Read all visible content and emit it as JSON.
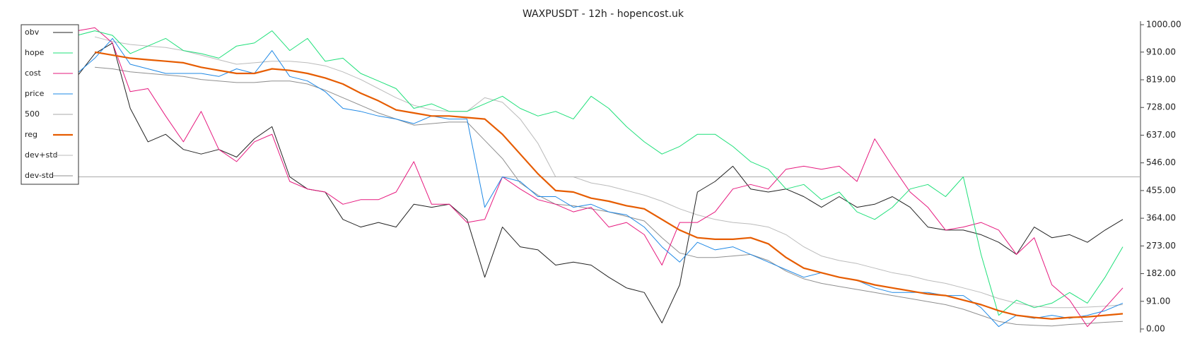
{
  "chart_data": {
    "type": "line",
    "title": "WAXPUSDT - 12h - hopencost.uk",
    "ylim": [
      0,
      1000
    ],
    "yticks": [
      {
        "value": 0,
        "label": "0.00"
      },
      {
        "value": 91,
        "label": "91.00"
      },
      {
        "value": 182,
        "label": "182.00"
      },
      {
        "value": 273,
        "label": "273.00"
      },
      {
        "value": 364,
        "label": "364.00"
      },
      {
        "value": 455,
        "label": "455.00"
      },
      {
        "value": 546,
        "label": "546.00"
      },
      {
        "value": 637,
        "label": "637.00"
      },
      {
        "value": 728,
        "label": "728.00"
      },
      {
        "value": 819,
        "label": "819.00"
      },
      {
        "value": 910,
        "label": "910.00"
      },
      {
        "value": 1000,
        "label": "1000.00"
      }
    ],
    "legend": "upper left",
    "series": [
      {
        "name": "obv",
        "color": "#222222",
        "width": 1,
        "values": [
          830,
          905,
          940,
          725,
          615,
          640,
          590,
          575,
          590,
          565,
          625,
          665,
          500,
          460,
          450,
          360,
          335,
          350,
          335,
          410,
          400,
          410,
          360,
          170,
          335,
          270,
          260,
          210,
          220,
          210,
          170,
          135,
          120,
          20,
          145,
          450,
          485,
          535,
          460,
          450,
          460,
          435,
          400,
          435,
          400,
          410,
          435,
          400,
          335,
          325,
          325,
          310,
          285,
          245,
          335,
          300,
          310,
          285,
          325,
          360
        ]
      },
      {
        "name": "hope",
        "color": "#1fe07a",
        "width": 1,
        "values": [
          965,
          980,
          965,
          905,
          930,
          955,
          915,
          905,
          890,
          930,
          940,
          980,
          915,
          955,
          880,
          890,
          840,
          815,
          790,
          725,
          740,
          715,
          715,
          740,
          765,
          725,
          700,
          715,
          690,
          765,
          725,
          665,
          615,
          575,
          600,
          640,
          640,
          600,
          550,
          525,
          460,
          475,
          425,
          450,
          385,
          360,
          400,
          460,
          475,
          435,
          500,
          245,
          45,
          95,
          70,
          85,
          120,
          85,
          170,
          270
        ]
      },
      {
        "name": "cost",
        "color": "#e6197e",
        "width": 1,
        "values": [
          980,
          990,
          940,
          780,
          790,
          700,
          615,
          715,
          590,
          550,
          615,
          640,
          485,
          460,
          450,
          410,
          425,
          425,
          450,
          550,
          410,
          410,
          350,
          360,
          500,
          460,
          425,
          410,
          385,
          400,
          335,
          350,
          310,
          210,
          350,
          350,
          385,
          460,
          475,
          460,
          525,
          535,
          525,
          535,
          485,
          625,
          535,
          450,
          400,
          325,
          335,
          350,
          325,
          245,
          300,
          145,
          95,
          8,
          70,
          135
        ]
      },
      {
        "name": "price",
        "color": "#1e88e5",
        "width": 1,
        "values": [
          840,
          890,
          955,
          870,
          855,
          840,
          840,
          840,
          830,
          855,
          840,
          915,
          830,
          815,
          780,
          725,
          715,
          700,
          690,
          675,
          700,
          690,
          690,
          400,
          500,
          485,
          435,
          435,
          400,
          410,
          385,
          375,
          335,
          270,
          220,
          285,
          260,
          270,
          245,
          220,
          195,
          170,
          185,
          170,
          160,
          135,
          120,
          120,
          120,
          110,
          110,
          70,
          8,
          45,
          35,
          45,
          35,
          45,
          60,
          85
        ]
      },
      {
        "name": "500",
        "color": "#aaaaaa",
        "width": 1,
        "level": 500
      },
      {
        "name": "reg",
        "color": "#e65c00",
        "width": 2.2,
        "values": [
          null,
          910,
          900,
          890,
          885,
          880,
          875,
          860,
          850,
          840,
          840,
          855,
          850,
          840,
          825,
          805,
          775,
          750,
          720,
          710,
          700,
          700,
          695,
          690,
          640,
          575,
          510,
          455,
          450,
          430,
          420,
          405,
          395,
          360,
          325,
          300,
          295,
          295,
          300,
          280,
          235,
          200,
          185,
          170,
          160,
          145,
          135,
          125,
          115,
          110,
          95,
          80,
          60,
          45,
          38,
          33,
          38,
          40,
          45,
          50
        ]
      },
      {
        "name": "dev+std",
        "color": "#bbbbbb",
        "width": 1,
        "values": [
          null,
          960,
          945,
          935,
          930,
          925,
          915,
          900,
          885,
          870,
          875,
          880,
          880,
          875,
          865,
          845,
          820,
          790,
          760,
          735,
          720,
          715,
          715,
          760,
          745,
          690,
          610,
          500,
          500,
          480,
          470,
          455,
          440,
          420,
          395,
          375,
          360,
          350,
          345,
          335,
          310,
          270,
          240,
          225,
          215,
          200,
          185,
          175,
          160,
          150,
          135,
          120,
          100,
          85,
          75,
          70,
          70,
          72,
          75,
          80
        ]
      },
      {
        "name": "dev-std",
        "color": "#8f8f8f",
        "width": 1,
        "values": [
          null,
          860,
          855,
          845,
          840,
          835,
          830,
          820,
          815,
          810,
          810,
          815,
          815,
          805,
          785,
          760,
          735,
          710,
          690,
          670,
          675,
          680,
          680,
          620,
          560,
          480,
          440,
          410,
          405,
          395,
          385,
          370,
          355,
          300,
          250,
          235,
          235,
          240,
          245,
          225,
          190,
          165,
          150,
          140,
          130,
          120,
          110,
          100,
          90,
          80,
          65,
          45,
          25,
          15,
          12,
          10,
          15,
          18,
          22,
          25
        ]
      }
    ]
  }
}
